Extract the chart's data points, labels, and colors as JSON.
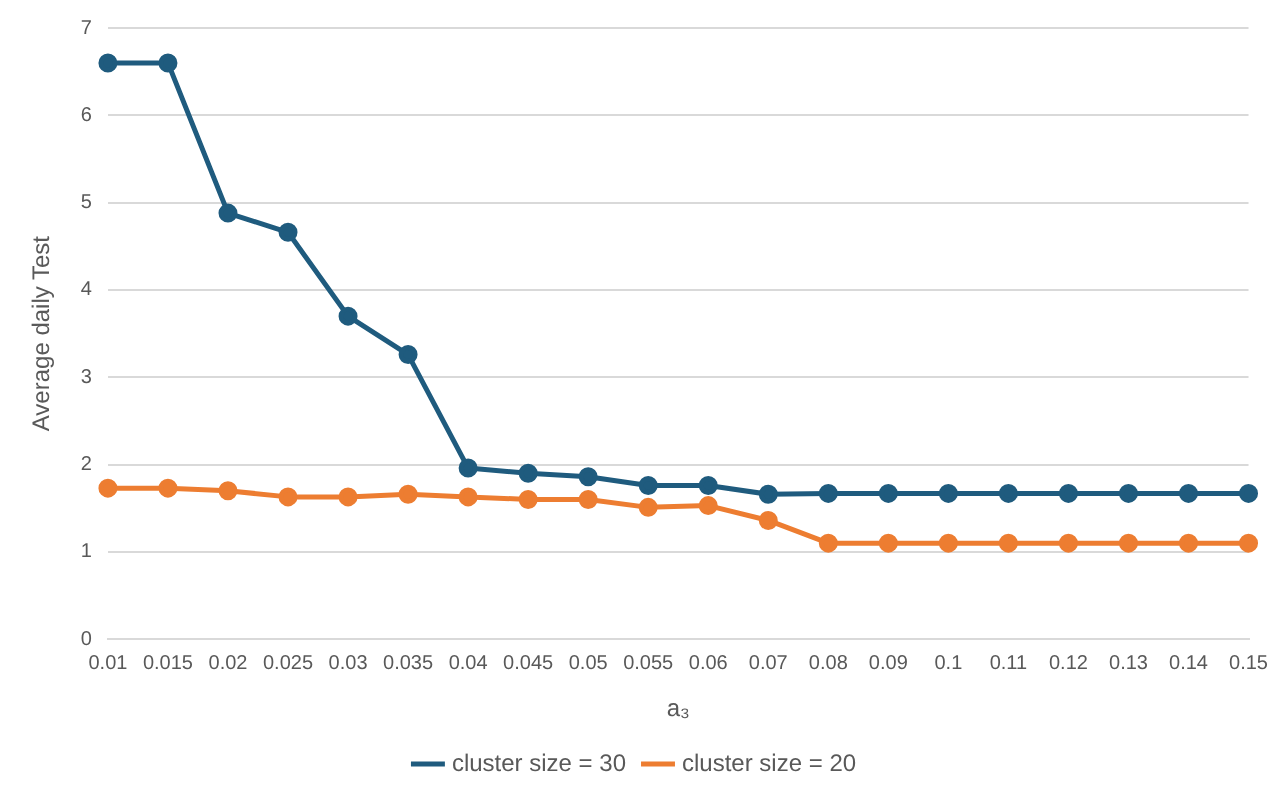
{
  "chart_data": {
    "type": "line",
    "xlabel": "a₃",
    "ylabel": "Average daily Test",
    "categories": [
      "0.01",
      "0.015",
      "0.02",
      "0.025",
      "0.03",
      "0.035",
      "0.04",
      "0.045",
      "0.05",
      "0.055",
      "0.06",
      "0.07",
      "0.08",
      "0.09",
      "0.1",
      "0.11",
      "0.12",
      "0.13",
      "0.14",
      "0.15"
    ],
    "series": [
      {
        "name": "cluster size = 30",
        "color": "#1f5b7e",
        "values": [
          6.6,
          6.6,
          4.88,
          4.66,
          3.7,
          3.26,
          1.96,
          1.9,
          1.86,
          1.76,
          1.76,
          1.66,
          1.67,
          1.67,
          1.67,
          1.67,
          1.67,
          1.67,
          1.67,
          1.67
        ]
      },
      {
        "name": "cluster size = 20",
        "color": "#ed7d31",
        "values": [
          1.73,
          1.73,
          1.7,
          1.63,
          1.63,
          1.66,
          1.63,
          1.6,
          1.6,
          1.51,
          1.53,
          1.36,
          1.1,
          1.1,
          1.1,
          1.1,
          1.1,
          1.1,
          1.1,
          1.1
        ]
      }
    ],
    "ylim": [
      0,
      7
    ],
    "yticks": [
      0,
      1,
      2,
      3,
      4,
      5,
      6,
      7
    ],
    "grid": "y",
    "legend": "bottom",
    "marker": "circle",
    "line_style": "solid"
  }
}
